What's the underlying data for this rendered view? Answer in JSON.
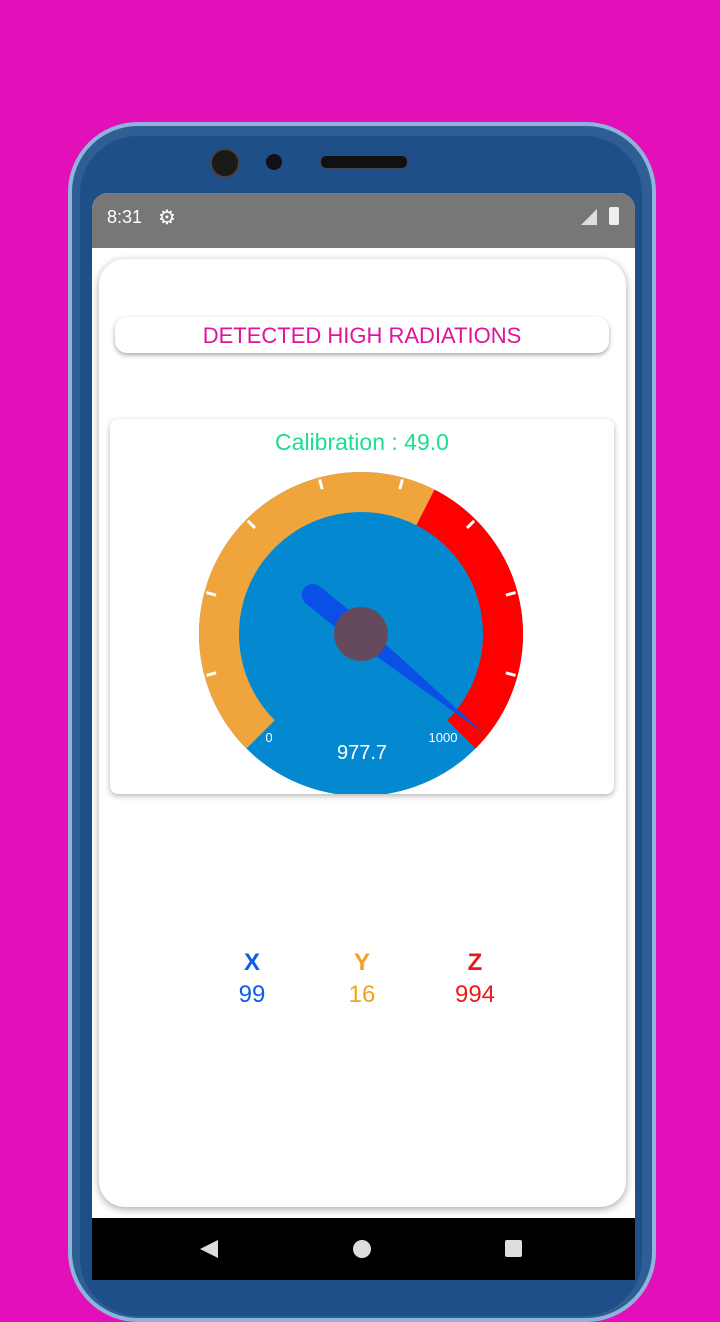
{
  "status_bar": {
    "time": "8:31",
    "icons": [
      "gear-icon",
      "signal-off-icon",
      "battery-charging-icon"
    ]
  },
  "banner": {
    "text": "DETECTED HIGH RADIATIONS"
  },
  "gauge": {
    "calibration_label": "Calibration : 49.0",
    "value": 977.7,
    "value_text": "977.7",
    "min_label": "0",
    "max_label": "1000",
    "min": 0,
    "max": 1000,
    "warning_from_fraction": 0.6,
    "colors": {
      "normal": "#f0a43c",
      "danger": "#ff0000",
      "face": "#0489d1",
      "needle": "#0a4fe6",
      "hub": "#654a5e"
    }
  },
  "axes": [
    {
      "label": "X",
      "value": "99",
      "color": "#0b5de6"
    },
    {
      "label": "Y",
      "value": "16",
      "color": "#f3a11e"
    },
    {
      "label": "Z",
      "value": "994",
      "color": "#e81a1a"
    }
  ],
  "nav": {
    "icons": [
      "back-icon",
      "home-icon",
      "recents-icon"
    ]
  }
}
